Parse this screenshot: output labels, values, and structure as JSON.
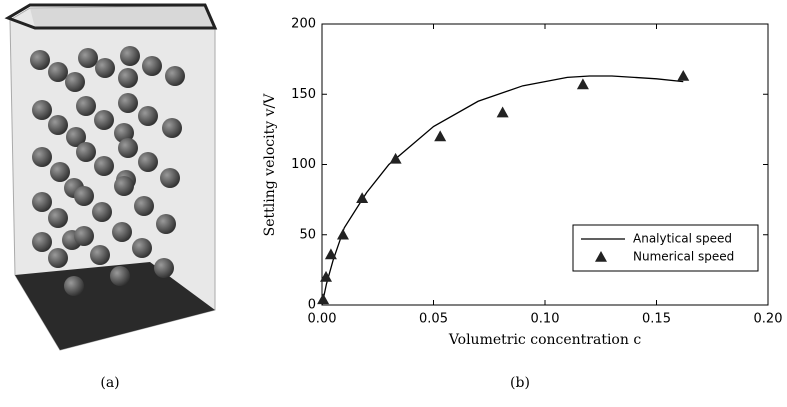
{
  "captions": [
    "(a)",
    "(b)"
  ],
  "chart_data": {
    "type": "line",
    "xlabel": "Volumetric concentration c",
    "ylabel": "Settling velocity v/V",
    "xlim": [
      0,
      0.2
    ],
    "ylim": [
      0,
      200
    ],
    "xticks": [
      {
        "value": 0,
        "label": "0.00"
      },
      {
        "value": 0.05,
        "label": "0.05"
      },
      {
        "value": 0.1,
        "label": "0.10"
      },
      {
        "value": 0.15,
        "label": "0.15"
      },
      {
        "value": 0.2,
        "label": "0.20"
      }
    ],
    "yticks": [
      0,
      50,
      100,
      150,
      200
    ],
    "legend": "lower right",
    "series": [
      {
        "name": "Analytical speed",
        "color": "#000000",
        "marker": "none",
        "x": [
          0,
          0.002,
          0.005,
          0.01,
          0.02,
          0.03,
          0.05,
          0.07,
          0.09,
          0.11,
          0.12,
          0.13,
          0.15,
          0.162
        ],
        "values": [
          0,
          15,
          32,
          55,
          80,
          100,
          127,
          145,
          156,
          162,
          163,
          163,
          161,
          159
        ]
      },
      {
        "name": "Numerical speed",
        "color": "#222222",
        "marker": "triangle",
        "x": [
          0.0005,
          0.0018,
          0.004,
          0.0094,
          0.018,
          0.033,
          0.053,
          0.081,
          0.117,
          0.162
        ],
        "values": [
          4,
          20,
          36,
          50,
          76,
          104,
          120,
          137,
          157,
          163
        ]
      }
    ]
  }
}
